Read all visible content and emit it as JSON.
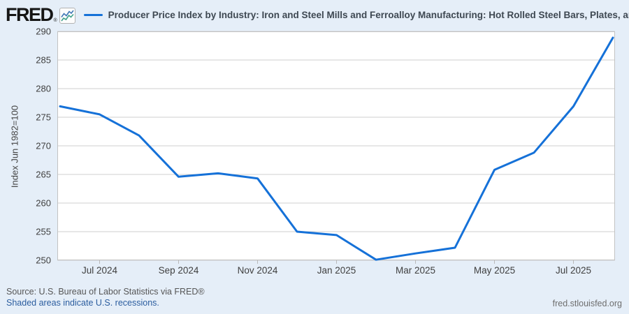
{
  "header": {
    "logo_text": "FRED",
    "logo_reg": "®",
    "series_title": "Producer Price Index by Industry: Iron and Steel Mills and Ferroalloy Manufacturing: Hot Rolled Steel Bars, Plates, and S"
  },
  "chart_data": {
    "type": "line",
    "title": "Producer Price Index by Industry: Iron and Steel Mills and Ferroalloy Manufacturing: Hot Rolled Steel Bars, Plates, and S",
    "x": [
      "Jun 2024",
      "Jul 2024",
      "Aug 2024",
      "Sep 2024",
      "Oct 2024",
      "Nov 2024",
      "Dec 2024",
      "Jan 2025",
      "Feb 2025",
      "Mar 2025",
      "Apr 2025",
      "May 2025",
      "Jun 2025",
      "Jul 2025",
      "Aug 2025"
    ],
    "values": [
      276.9,
      275.5,
      271.8,
      264.6,
      265.2,
      264.3,
      255.0,
      254.4,
      250.1,
      251.2,
      252.2,
      265.8,
      268.8,
      276.9,
      288.9
    ],
    "ylabel": "Index Jun 1982=100",
    "xlabel": "",
    "ylim": [
      250,
      290
    ],
    "yticks": [
      250,
      255,
      260,
      265,
      270,
      275,
      280,
      285,
      290
    ],
    "xticks": [
      "Jul 2024",
      "Sep 2024",
      "Nov 2024",
      "Jan 2025",
      "Mar 2025",
      "May 2025",
      "Jul 2025"
    ],
    "grid": true,
    "legend_position": "top",
    "line_color": "#1571d8",
    "grid_color": "#cfcfcf",
    "axis_border_color": "#c2c2c2",
    "tick_label_color": "#3f3f3f",
    "plot_bg": "#ffffff"
  },
  "footer": {
    "source": "Source: U.S. Bureau of Labor Statistics via FRED®",
    "recessions_note": "Shaded areas indicate U.S. recessions.",
    "site": "fred.stlouisfed.org"
  },
  "icons": {
    "logo_chart_icon": "fred-sparkline-icon"
  }
}
